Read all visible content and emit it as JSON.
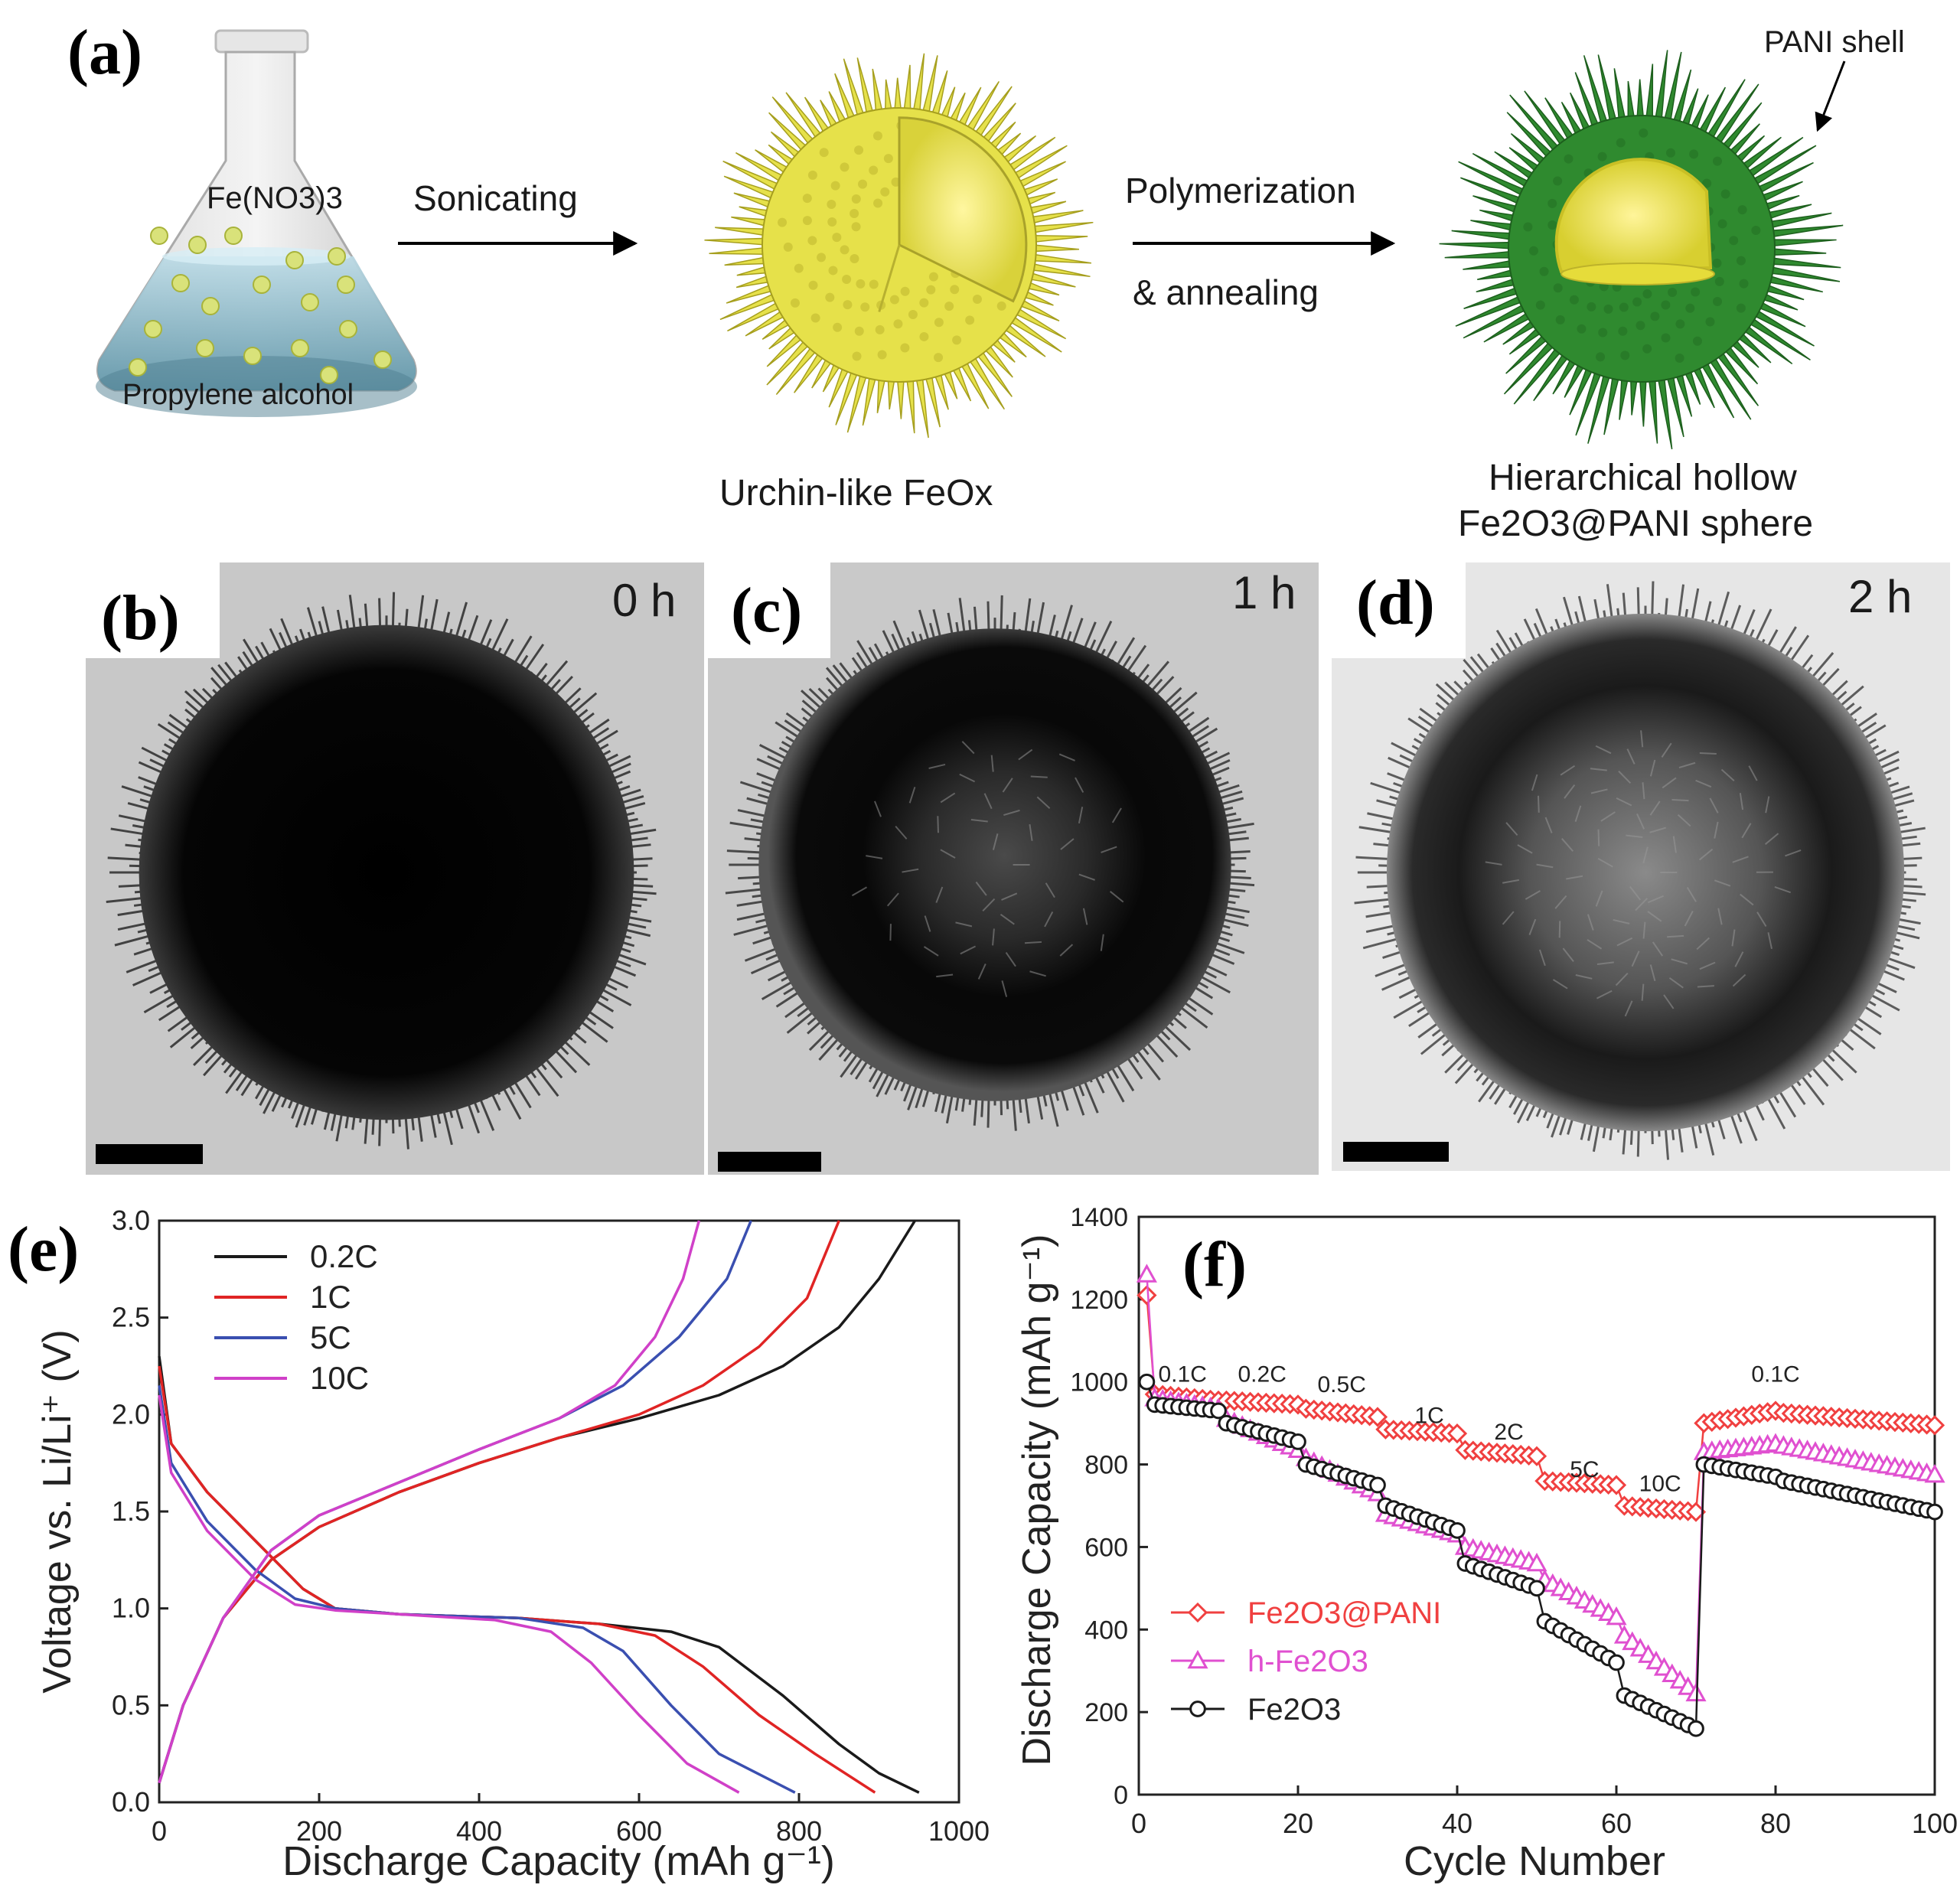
{
  "panel_labels": {
    "a": "(a)",
    "b": "(b)",
    "c": "(c)",
    "d": "(d)",
    "e": "(e)",
    "f": "(f)"
  },
  "schematic": {
    "flask_reagent": "Fe(NO3)3",
    "flask_solvent": "Propylene alcohol",
    "step1": "Sonicating",
    "step2_line1": "Polymerization",
    "step2_line2": "& annealing",
    "intermediate": "Urchin-like FeOx",
    "product_line1": "Hierarchical hollow",
    "product_line2": "Fe2O3@PANI sphere",
    "shell_label": "PANI shell",
    "colors": {
      "urchin": "#e6e14a",
      "pani": "#2f8a2f",
      "flask": "#8fbdd0"
    }
  },
  "tem": {
    "b": {
      "time": "0 h",
      "hollowness": 0.0
    },
    "c": {
      "time": "1 h",
      "hollowness": 0.45
    },
    "d": {
      "time": "2 h",
      "hollowness": 0.8
    }
  },
  "chart_data": [
    {
      "id": "e",
      "type": "line",
      "xlabel": "Discharge Capacity (mAh g⁻¹)",
      "ylabel": "Voltage vs. Li/Li⁺ (V)",
      "xlim": [
        0,
        1000
      ],
      "ylim": [
        0,
        3.0
      ],
      "xticks": [
        0,
        200,
        400,
        600,
        800,
        1000
      ],
      "yticks": [
        0.0,
        0.5,
        1.0,
        1.5,
        2.0,
        2.5,
        3.0
      ],
      "legend": [
        "0.2C",
        "1C",
        "5C",
        "10C"
      ],
      "series": [
        {
          "name": "0.2C",
          "color": "#1a1a1a",
          "discharge": [
            [
              0,
              2.3
            ],
            [
              15,
              1.85
            ],
            [
              60,
              1.6
            ],
            [
              120,
              1.35
            ],
            [
              180,
              1.1
            ],
            [
              220,
              1.0
            ],
            [
              300,
              0.97
            ],
            [
              450,
              0.95
            ],
            [
              550,
              0.92
            ],
            [
              640,
              0.88
            ],
            [
              700,
              0.8
            ],
            [
              780,
              0.55
            ],
            [
              850,
              0.3
            ],
            [
              900,
              0.15
            ],
            [
              950,
              0.05
            ]
          ],
          "charge": [
            [
              0,
              0.1
            ],
            [
              30,
              0.5
            ],
            [
              80,
              0.95
            ],
            [
              140,
              1.25
            ],
            [
              200,
              1.42
            ],
            [
              300,
              1.6
            ],
            [
              400,
              1.75
            ],
            [
              500,
              1.88
            ],
            [
              600,
              1.98
            ],
            [
              700,
              2.1
            ],
            [
              780,
              2.25
            ],
            [
              850,
              2.45
            ],
            [
              900,
              2.7
            ],
            [
              945,
              3.0
            ]
          ]
        },
        {
          "name": "1C",
          "color": "#e02424",
          "discharge": [
            [
              0,
              2.25
            ],
            [
              15,
              1.85
            ],
            [
              60,
              1.6
            ],
            [
              120,
              1.35
            ],
            [
              180,
              1.1
            ],
            [
              220,
              1.0
            ],
            [
              300,
              0.97
            ],
            [
              450,
              0.95
            ],
            [
              550,
              0.92
            ],
            [
              620,
              0.86
            ],
            [
              680,
              0.7
            ],
            [
              750,
              0.45
            ],
            [
              820,
              0.25
            ],
            [
              895,
              0.05
            ]
          ],
          "charge": [
            [
              0,
              0.1
            ],
            [
              30,
              0.5
            ],
            [
              80,
              0.95
            ],
            [
              140,
              1.25
            ],
            [
              200,
              1.42
            ],
            [
              300,
              1.6
            ],
            [
              400,
              1.75
            ],
            [
              500,
              1.88
            ],
            [
              600,
              2.0
            ],
            [
              680,
              2.15
            ],
            [
              750,
              2.35
            ],
            [
              810,
              2.6
            ],
            [
              850,
              3.0
            ]
          ]
        },
        {
          "name": "5C",
          "color": "#3a4fb0",
          "discharge": [
            [
              0,
              2.15
            ],
            [
              15,
              1.75
            ],
            [
              60,
              1.45
            ],
            [
              120,
              1.2
            ],
            [
              170,
              1.05
            ],
            [
              220,
              1.0
            ],
            [
              300,
              0.97
            ],
            [
              450,
              0.95
            ],
            [
              530,
              0.9
            ],
            [
              580,
              0.78
            ],
            [
              640,
              0.5
            ],
            [
              700,
              0.25
            ],
            [
              795,
              0.05
            ]
          ],
          "charge": [
            [
              0,
              0.1
            ],
            [
              30,
              0.5
            ],
            [
              80,
              0.95
            ],
            [
              140,
              1.3
            ],
            [
              200,
              1.48
            ],
            [
              300,
              1.65
            ],
            [
              400,
              1.82
            ],
            [
              500,
              1.98
            ],
            [
              580,
              2.15
            ],
            [
              650,
              2.4
            ],
            [
              710,
              2.7
            ],
            [
              740,
              3.0
            ]
          ]
        },
        {
          "name": "10C",
          "color": "#d040c8",
          "discharge": [
            [
              0,
              2.1
            ],
            [
              15,
              1.7
            ],
            [
              60,
              1.4
            ],
            [
              120,
              1.15
            ],
            [
              170,
              1.02
            ],
            [
              220,
              0.99
            ],
            [
              300,
              0.97
            ],
            [
              420,
              0.94
            ],
            [
              490,
              0.88
            ],
            [
              540,
              0.72
            ],
            [
              600,
              0.45
            ],
            [
              660,
              0.2
            ],
            [
              725,
              0.05
            ]
          ],
          "charge": [
            [
              0,
              0.1
            ],
            [
              30,
              0.5
            ],
            [
              80,
              0.95
            ],
            [
              140,
              1.3
            ],
            [
              200,
              1.48
            ],
            [
              300,
              1.65
            ],
            [
              400,
              1.82
            ],
            [
              500,
              1.98
            ],
            [
              570,
              2.15
            ],
            [
              620,
              2.4
            ],
            [
              655,
              2.7
            ],
            [
              675,
              3.0
            ]
          ]
        }
      ]
    },
    {
      "id": "f",
      "type": "scatter",
      "xlabel": "Cycle Number",
      "ylabel": "Discharge Capacity (mAh g⁻¹)",
      "xlim": [
        0,
        100
      ],
      "ylim": [
        0,
        1400
      ],
      "xticks": [
        0,
        20,
        40,
        60,
        80,
        100
      ],
      "yticks": [
        0,
        200,
        400,
        600,
        800,
        1000,
        1200,
        1400
      ],
      "rate_labels": [
        {
          "text": "0.1C",
          "x": 5.5,
          "y": 1000
        },
        {
          "text": "0.2C",
          "x": 15.5,
          "y": 1000
        },
        {
          "text": "0.5C",
          "x": 25.5,
          "y": 975
        },
        {
          "text": "1C",
          "x": 36.5,
          "y": 900
        },
        {
          "text": "2C",
          "x": 46.5,
          "y": 860
        },
        {
          "text": "5C",
          "x": 56,
          "y": 770
        },
        {
          "text": "10C",
          "x": 65.5,
          "y": 735
        },
        {
          "text": "0.1C",
          "x": 80,
          "y": 1000
        }
      ],
      "series": [
        {
          "name": "Fe2O3@PANI",
          "color": "#f04040",
          "marker": "diamond",
          "first": 1210,
          "segments": [
            [
              2,
              10,
              970,
              955
            ],
            [
              11,
              20,
              955,
              945
            ],
            [
              21,
              30,
              935,
              915
            ],
            [
              31,
              40,
              885,
              875
            ],
            [
              41,
              50,
              835,
              820
            ],
            [
              51,
              60,
              760,
              750
            ],
            [
              61,
              70,
              700,
              685
            ],
            [
              71,
              80,
              900,
              930
            ],
            [
              81,
              100,
              925,
              895
            ]
          ]
        },
        {
          "name": "h-Fe2O3",
          "color": "#e050d0",
          "marker": "triangle",
          "first": 1260,
          "segments": [
            [
              2,
              10,
              960,
              935
            ],
            [
              11,
              20,
              910,
              835
            ],
            [
              21,
              30,
              815,
              730
            ],
            [
              31,
              40,
              680,
              630
            ],
            [
              41,
              50,
              600,
              560
            ],
            [
              51,
              60,
              520,
              430
            ],
            [
              61,
              70,
              385,
              245
            ],
            [
              71,
              80,
              830,
              850
            ],
            [
              81,
              100,
              845,
              775
            ]
          ]
        },
        {
          "name": "Fe2O3",
          "color": "#1a1a1a",
          "marker": "circle",
          "first": 1000,
          "segments": [
            [
              2,
              10,
              945,
              930
            ],
            [
              11,
              20,
              900,
              855
            ],
            [
              21,
              30,
              800,
              750
            ],
            [
              31,
              40,
              700,
              640
            ],
            [
              41,
              50,
              560,
              500
            ],
            [
              51,
              60,
              420,
              320
            ],
            [
              61,
              70,
              240,
              160
            ],
            [
              71,
              80,
              800,
              770
            ],
            [
              81,
              100,
              760,
              685
            ]
          ]
        }
      ],
      "legend": [
        {
          "name": "Fe2O3@PANI",
          "color": "#f04040",
          "marker": "diamond"
        },
        {
          "name": "h-Fe2O3",
          "color": "#e050d0",
          "marker": "triangle"
        },
        {
          "name": "Fe2O3",
          "color": "#1a1a1a",
          "marker": "circle"
        }
      ]
    }
  ]
}
